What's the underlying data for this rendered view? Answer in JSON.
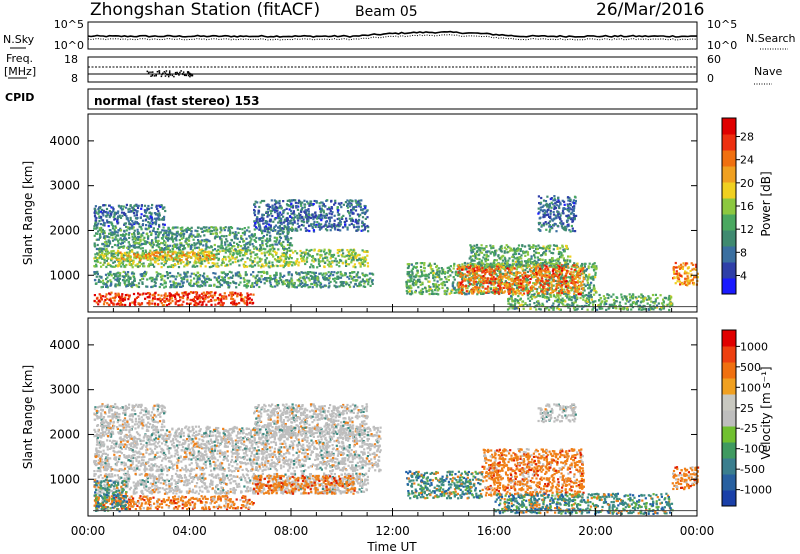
{
  "header": {
    "station": "Zhongshan Station (fitACF)",
    "beam": "Beam 05",
    "date": "26/Mar/2016"
  },
  "top_panels": {
    "nsky_label": "N.Sky",
    "nsky_ticks": [
      "10^5",
      "10^0"
    ],
    "nsearch_label": "N.Search",
    "nsearch_ticks": [
      "10^5",
      "10^0"
    ],
    "freq_label_1": "Freq.",
    "freq_label_2": "[MHz]",
    "freq_ticks": [
      "18",
      "8"
    ],
    "nave_label": "Nave",
    "nave_ticks": [
      "60",
      "0"
    ],
    "cpid_label": "CPID",
    "cpid_text": "normal (fast stereo) 153"
  },
  "colors": {
    "power_scale": [
      "#1a1aff",
      "#2f3fa8",
      "#3a6fa0",
      "#3f8a70",
      "#4aa860",
      "#8cc840",
      "#f0d020",
      "#f0a020",
      "#f07010",
      "#ee3010",
      "#e00000"
    ],
    "velocity_scale": [
      "#1a40a8",
      "#2860a0",
      "#3a7e8e",
      "#3f9a60",
      "#70c030",
      "#bebebe",
      "#c8c8c0",
      "#f0a020",
      "#f07010",
      "#ee4010",
      "#e00000"
    ]
  },
  "chart_data": [
    {
      "type": "heatmap",
      "title": "Power",
      "ylabel": "Slant Range [km]",
      "xlabel": "Time UT",
      "xlim": [
        "00:00",
        "24:00"
      ],
      "ylim": [
        180,
        4600
      ],
      "x_ticks": [
        "00:00",
        "04:00",
        "08:00",
        "12:00",
        "16:00",
        "20:00",
        "00:00"
      ],
      "y_ticks": [
        1000,
        2000,
        3000,
        4000
      ],
      "colorbar_label": "Power [dB]",
      "colorbar_ticks": [
        "4",
        "8",
        "12",
        "16",
        "20",
        "24",
        "28"
      ],
      "colorbar_range": [
        0,
        30
      ],
      "regions": [
        {
          "t0": 0.2,
          "t1": 11.2,
          "r0": 750,
          "r1": 1100,
          "level": 10
        },
        {
          "t0": 0.2,
          "t1": 6.5,
          "r0": 350,
          "r1": 650,
          "level": 27
        },
        {
          "t0": 0.2,
          "t1": 11.0,
          "r0": 1200,
          "r1": 1600,
          "level": 14
        },
        {
          "t0": 1.0,
          "t1": 5.0,
          "r0": 1350,
          "r1": 1550,
          "level": 20
        },
        {
          "t0": 0.2,
          "t1": 8.0,
          "r0": 1600,
          "r1": 2100,
          "level": 10
        },
        {
          "t0": 0.2,
          "t1": 3.0,
          "r0": 2100,
          "r1": 2600,
          "level": 6
        },
        {
          "t0": 6.5,
          "t1": 11.0,
          "r0": 2000,
          "r1": 2700,
          "level": 6
        },
        {
          "t0": 12.5,
          "t1": 20.0,
          "r0": 600,
          "r1": 1300,
          "level": 12
        },
        {
          "t0": 14.5,
          "t1": 19.5,
          "r0": 600,
          "r1": 1250,
          "level": 24
        },
        {
          "t0": 15.0,
          "t1": 19.0,
          "r0": 1200,
          "r1": 1700,
          "level": 12
        },
        {
          "t0": 17.7,
          "t1": 19.2,
          "r0": 2000,
          "r1": 2800,
          "level": 6
        },
        {
          "t0": 16.5,
          "t1": 23.0,
          "r0": 250,
          "r1": 600,
          "level": 12
        },
        {
          "t0": 23.0,
          "t1": 24.0,
          "r0": 800,
          "r1": 1300,
          "level": 22
        }
      ]
    },
    {
      "type": "heatmap",
      "title": "Velocity",
      "ylabel": "Slant Range [km]",
      "xlabel": "Time UT",
      "xlim": [
        "00:00",
        "24:00"
      ],
      "ylim": [
        180,
        4600
      ],
      "x_ticks": [
        "00:00",
        "04:00",
        "08:00",
        "12:00",
        "16:00",
        "20:00",
        "00:00"
      ],
      "y_ticks": [
        1000,
        2000,
        3000,
        4000
      ],
      "colorbar_label": "Velocity [m s⁻¹]",
      "colorbar_ticks": [
        "1000",
        "500",
        "100",
        "25",
        "-25",
        "-100",
        "-500",
        "-1000"
      ],
      "regions": [
        {
          "t0": 0.2,
          "t1": 11.5,
          "r0": 1200,
          "r1": 2200,
          "level": "gray"
        },
        {
          "t0": 0.2,
          "t1": 3.0,
          "r0": 2200,
          "r1": 2700,
          "level": "gray"
        },
        {
          "t0": 6.5,
          "t1": 11.0,
          "r0": 2000,
          "r1": 2700,
          "level": "gray"
        },
        {
          "t0": 0.2,
          "t1": 11.0,
          "r0": 700,
          "r1": 1150,
          "level": "gray"
        },
        {
          "t0": 0.2,
          "t1": 6.5,
          "r0": 350,
          "r1": 650,
          "level": "orange"
        },
        {
          "t0": 6.5,
          "t1": 10.5,
          "r0": 700,
          "r1": 1100,
          "level": "orange"
        },
        {
          "t0": 0.2,
          "t1": 1.5,
          "r0": 300,
          "r1": 1000,
          "level": "teal"
        },
        {
          "t0": 12.5,
          "t1": 15.5,
          "r0": 600,
          "r1": 1200,
          "level": "teal"
        },
        {
          "t0": 15.5,
          "t1": 19.5,
          "r0": 650,
          "r1": 1700,
          "level": "orange"
        },
        {
          "t0": 17.7,
          "t1": 19.2,
          "r0": 2300,
          "r1": 2700,
          "level": "gray"
        },
        {
          "t0": 16.0,
          "t1": 23.0,
          "r0": 250,
          "r1": 700,
          "level": "teal"
        },
        {
          "t0": 23.0,
          "t1": 24.0,
          "r0": 800,
          "r1": 1300,
          "level": "orange"
        }
      ]
    }
  ]
}
